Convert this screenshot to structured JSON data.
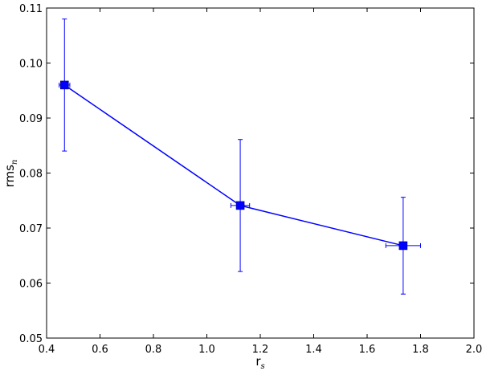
{
  "chart_data": {
    "type": "scatter",
    "title": "",
    "xlabel": "r",
    "xlabel_sub": "s",
    "ylabel": "rms",
    "ylabel_sub": "n",
    "xlim": [
      0.4,
      2.0
    ],
    "ylim": [
      0.05,
      0.11
    ],
    "xticks": [
      "0.4",
      "0.6",
      "0.8",
      "1.0",
      "1.2",
      "1.4",
      "1.6",
      "1.8",
      "2.0"
    ],
    "yticks": [
      "0.05",
      "0.06",
      "0.07",
      "0.08",
      "0.09",
      "0.10",
      "0.11"
    ],
    "grid": false,
    "legend": "none",
    "series": [
      {
        "color": "#0000ff",
        "marker": "square",
        "linestyle": "solid",
        "points": [
          {
            "x": 0.467,
            "y": 0.096,
            "xerr": 0.02,
            "yerr": 0.012
          },
          {
            "x": 1.125,
            "y": 0.0741,
            "xerr": 0.035,
            "yerr": 0.012
          },
          {
            "x": 1.735,
            "y": 0.0668,
            "xerr": 0.065,
            "yerr": 0.0088
          }
        ]
      }
    ]
  }
}
